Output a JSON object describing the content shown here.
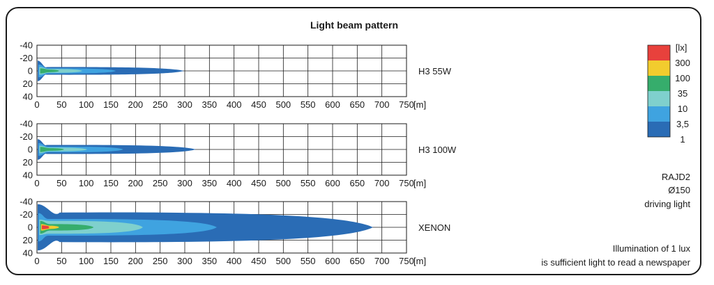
{
  "chart_data": {
    "type": "heatmap",
    "title": "Light beam pattern",
    "x_unit": "[m]",
    "xlim": [
      0,
      750
    ],
    "x_ticks": [
      0,
      50,
      100,
      150,
      200,
      250,
      300,
      350,
      400,
      450,
      500,
      550,
      600,
      650,
      700,
      750
    ],
    "y_ticks": [
      "-40",
      "-20",
      "0",
      "20",
      "40"
    ],
    "ylim": [
      -40,
      40
    ],
    "grid": true,
    "legend": {
      "unit": "[lx]",
      "placement": "top-right",
      "levels": [
        {
          "label": "300",
          "color": "#e8413c"
        },
        {
          "label": "100",
          "color": "#f2cc2e"
        },
        {
          "label": "35",
          "color": "#36ad6c"
        },
        {
          "label": "10",
          "color": "#7fd0cd"
        },
        {
          "label": "3,5",
          "color": "#3fa3e0"
        },
        {
          "label": "1",
          "color": "#2a6cb5"
        }
      ]
    },
    "panels": [
      {
        "name": "H3 55W",
        "isolux_reach_m": {
          "1": 298,
          "3,5": 160,
          "10": 92,
          "35": 45
        },
        "isolux_halfwidth_m": {
          "1": 6,
          "3,5": 4,
          "10": 3,
          "35": 2
        }
      },
      {
        "name": "H3 100W",
        "isolux_reach_m": {
          "1": 322,
          "3,5": 175,
          "10": 102,
          "35": 55
        },
        "isolux_halfwidth_m": {
          "1": 7,
          "3,5": 4.5,
          "10": 3,
          "35": 2
        }
      },
      {
        "name": "XENON",
        "isolux_reach_m": {
          "1": 682,
          "3,5": 365,
          "10": 215,
          "35": 115,
          "100": 45,
          "300": 25
        },
        "isolux_halfwidth_m": {
          "1": 23,
          "3,5": 13,
          "10": 10,
          "35": 5,
          "100": 2.5,
          "300": 1.5
        }
      }
    ]
  },
  "notes": {
    "model": "RAJD2",
    "diameter": "Ø150",
    "type": "driving light",
    "caption_line1": "Illumination of 1 lux",
    "caption_line2": "is sufficient light to read a newspaper"
  }
}
